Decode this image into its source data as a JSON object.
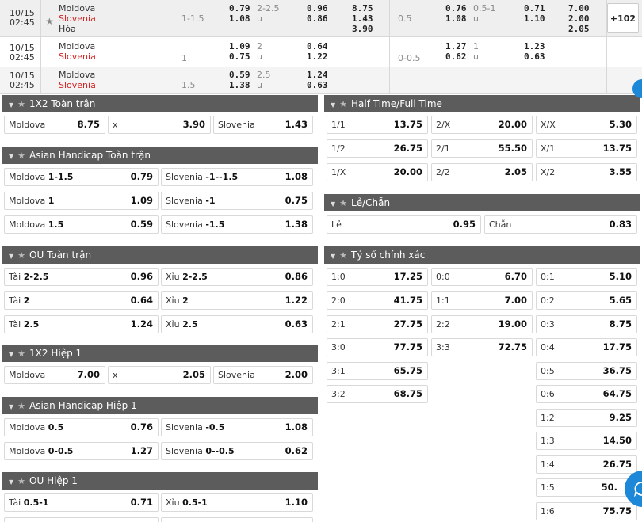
{
  "colors": {
    "header_bg": "#5c5c5c",
    "away_team": "#d32222",
    "accent": "#1e88d8"
  },
  "top_rows": [
    {
      "date": "10/15",
      "time": "02:45",
      "home": "Moldova",
      "away": "Slovenia",
      "draw": "Hòa",
      "ah_line": "1-1.5",
      "ah_home": "0.79",
      "ah_away": "1.08",
      "ou_line": "2-2.5",
      "ou_u": "u",
      "ou_over": "0.96",
      "ou_under": "0.86",
      "x12": [
        "8.75",
        "1.43",
        "3.90"
      ],
      "h1_ah_line": "0.5",
      "h1_ah_home": "0.76",
      "h1_ah_away": "1.08",
      "h1_ou_line": "0.5-1",
      "h1_ou_u": "u",
      "h1_ou_over": "0.71",
      "h1_ou_under": "1.10",
      "h1_x12": [
        "7.00",
        "2.00",
        "2.05"
      ],
      "more": "+102"
    },
    {
      "date": "10/15",
      "time": "02:45",
      "home": "Moldova",
      "away": "Slovenia",
      "ah_line": "1",
      "ah_home": "1.09",
      "ah_away": "0.75",
      "ou_line": "2",
      "ou_u": "u",
      "ou_over": "0.64",
      "ou_under": "1.22",
      "h1_ah_line": "0-0.5",
      "h1_ah_home": "1.27",
      "h1_ah_away": "0.62",
      "h1_ou_line": "1",
      "h1_ou_u": "u",
      "h1_ou_over": "1.23",
      "h1_ou_under": "0.63"
    },
    {
      "date": "10/15",
      "time": "02:45",
      "home": "Moldova",
      "away": "Slovenia",
      "ah_line": "1.5",
      "ah_home": "0.59",
      "ah_away": "1.38",
      "ou_line": "2.5",
      "ou_u": "u",
      "ou_over": "1.24",
      "ou_under": "0.63"
    }
  ],
  "markets": {
    "m1x2_ft": {
      "title": "1X2 Toàn trận",
      "odds": [
        {
          "label": "Moldova",
          "value": "8.75"
        },
        {
          "label": "x",
          "value": "3.90"
        },
        {
          "label": "Slovenia",
          "value": "1.43"
        }
      ]
    },
    "ah_ft": {
      "title": "Asian Handicap Toàn trận",
      "rows": [
        [
          {
            "label": "Moldova",
            "line": "1-1.5",
            "value": "0.79"
          },
          {
            "label": "Slovenia",
            "line": "-1--1.5",
            "value": "1.08"
          }
        ],
        [
          {
            "label": "Moldova",
            "line": "1",
            "value": "1.09"
          },
          {
            "label": "Slovenia",
            "line": "-1",
            "value": "0.75"
          }
        ],
        [
          {
            "label": "Moldova",
            "line": "1.5",
            "value": "0.59"
          },
          {
            "label": "Slovenia",
            "line": "-1.5",
            "value": "1.38"
          }
        ]
      ]
    },
    "ou_ft": {
      "title": "OU Toàn trận",
      "rows": [
        [
          {
            "label": "Tài",
            "line": "2-2.5",
            "value": "0.96"
          },
          {
            "label": "Xỉu",
            "line": "2-2.5",
            "value": "0.86"
          }
        ],
        [
          {
            "label": "Tài",
            "line": "2",
            "value": "0.64"
          },
          {
            "label": "Xỉu",
            "line": "2",
            "value": "1.22"
          }
        ],
        [
          {
            "label": "Tài",
            "line": "2.5",
            "value": "1.24"
          },
          {
            "label": "Xỉu",
            "line": "2.5",
            "value": "0.63"
          }
        ]
      ]
    },
    "m1x2_h1": {
      "title": "1X2 Hiệp 1",
      "odds": [
        {
          "label": "Moldova",
          "value": "7.00"
        },
        {
          "label": "x",
          "value": "2.05"
        },
        {
          "label": "Slovenia",
          "value": "2.00"
        }
      ]
    },
    "ah_h1": {
      "title": "Asian Handicap Hiệp 1",
      "rows": [
        [
          {
            "label": "Moldova",
            "line": "0.5",
            "value": "0.76"
          },
          {
            "label": "Slovenia",
            "line": "-0.5",
            "value": "1.08"
          }
        ],
        [
          {
            "label": "Moldova",
            "line": "0-0.5",
            "value": "1.27"
          },
          {
            "label": "Slovenia",
            "line": "0--0.5",
            "value": "0.62"
          }
        ]
      ]
    },
    "ou_h1": {
      "title": "OU Hiệp 1",
      "rows": [
        [
          {
            "label": "Tài",
            "line": "0.5-1",
            "value": "0.71"
          },
          {
            "label": "Xỉu",
            "line": "0.5-1",
            "value": "1.10"
          }
        ]
      ]
    },
    "htft": {
      "title": "Half Time/Full Time",
      "rows": [
        [
          {
            "label": "1/1",
            "value": "13.75"
          },
          {
            "label": "2/X",
            "value": "20.00"
          },
          {
            "label": "X/X",
            "value": "5.30"
          }
        ],
        [
          {
            "label": "1/2",
            "value": "26.75"
          },
          {
            "label": "2/1",
            "value": "55.50"
          },
          {
            "label": "X/1",
            "value": "13.75"
          }
        ],
        [
          {
            "label": "1/X",
            "value": "20.00"
          },
          {
            "label": "2/2",
            "value": "2.05"
          },
          {
            "label": "X/2",
            "value": "3.55"
          }
        ]
      ]
    },
    "oddeven": {
      "title": "Lẻ/Chẵn",
      "odds": [
        {
          "label": "Lẻ",
          "value": "0.95"
        },
        {
          "label": "Chẵn",
          "value": "0.83"
        }
      ]
    },
    "correct_score": {
      "title": "Tỷ số chính xác",
      "home": [
        {
          "label": "1:0",
          "value": "17.25"
        },
        {
          "label": "2:0",
          "value": "41.75"
        },
        {
          "label": "2:1",
          "value": "27.75"
        },
        {
          "label": "3:0",
          "value": "77.75"
        },
        {
          "label": "3:1",
          "value": "65.75"
        },
        {
          "label": "3:2",
          "value": "68.75"
        }
      ],
      "draw": [
        {
          "label": "0:0",
          "value": "6.70"
        },
        {
          "label": "1:1",
          "value": "7.00"
        },
        {
          "label": "2:2",
          "value": "19.00"
        },
        {
          "label": "3:3",
          "value": "72.75"
        }
      ],
      "away": [
        {
          "label": "0:1",
          "value": "5.10"
        },
        {
          "label": "0:2",
          "value": "5.65"
        },
        {
          "label": "0:3",
          "value": "8.75"
        },
        {
          "label": "0:4",
          "value": "17.75"
        },
        {
          "label": "0:5",
          "value": "36.75"
        },
        {
          "label": "0:6",
          "value": "64.75"
        },
        {
          "label": "1:2",
          "value": "9.25"
        },
        {
          "label": "1:3",
          "value": "14.50"
        },
        {
          "label": "1:4",
          "value": "26.75"
        },
        {
          "label": "1:5",
          "value": "50."
        },
        {
          "label": "1:6",
          "value": "75.75"
        }
      ]
    }
  }
}
